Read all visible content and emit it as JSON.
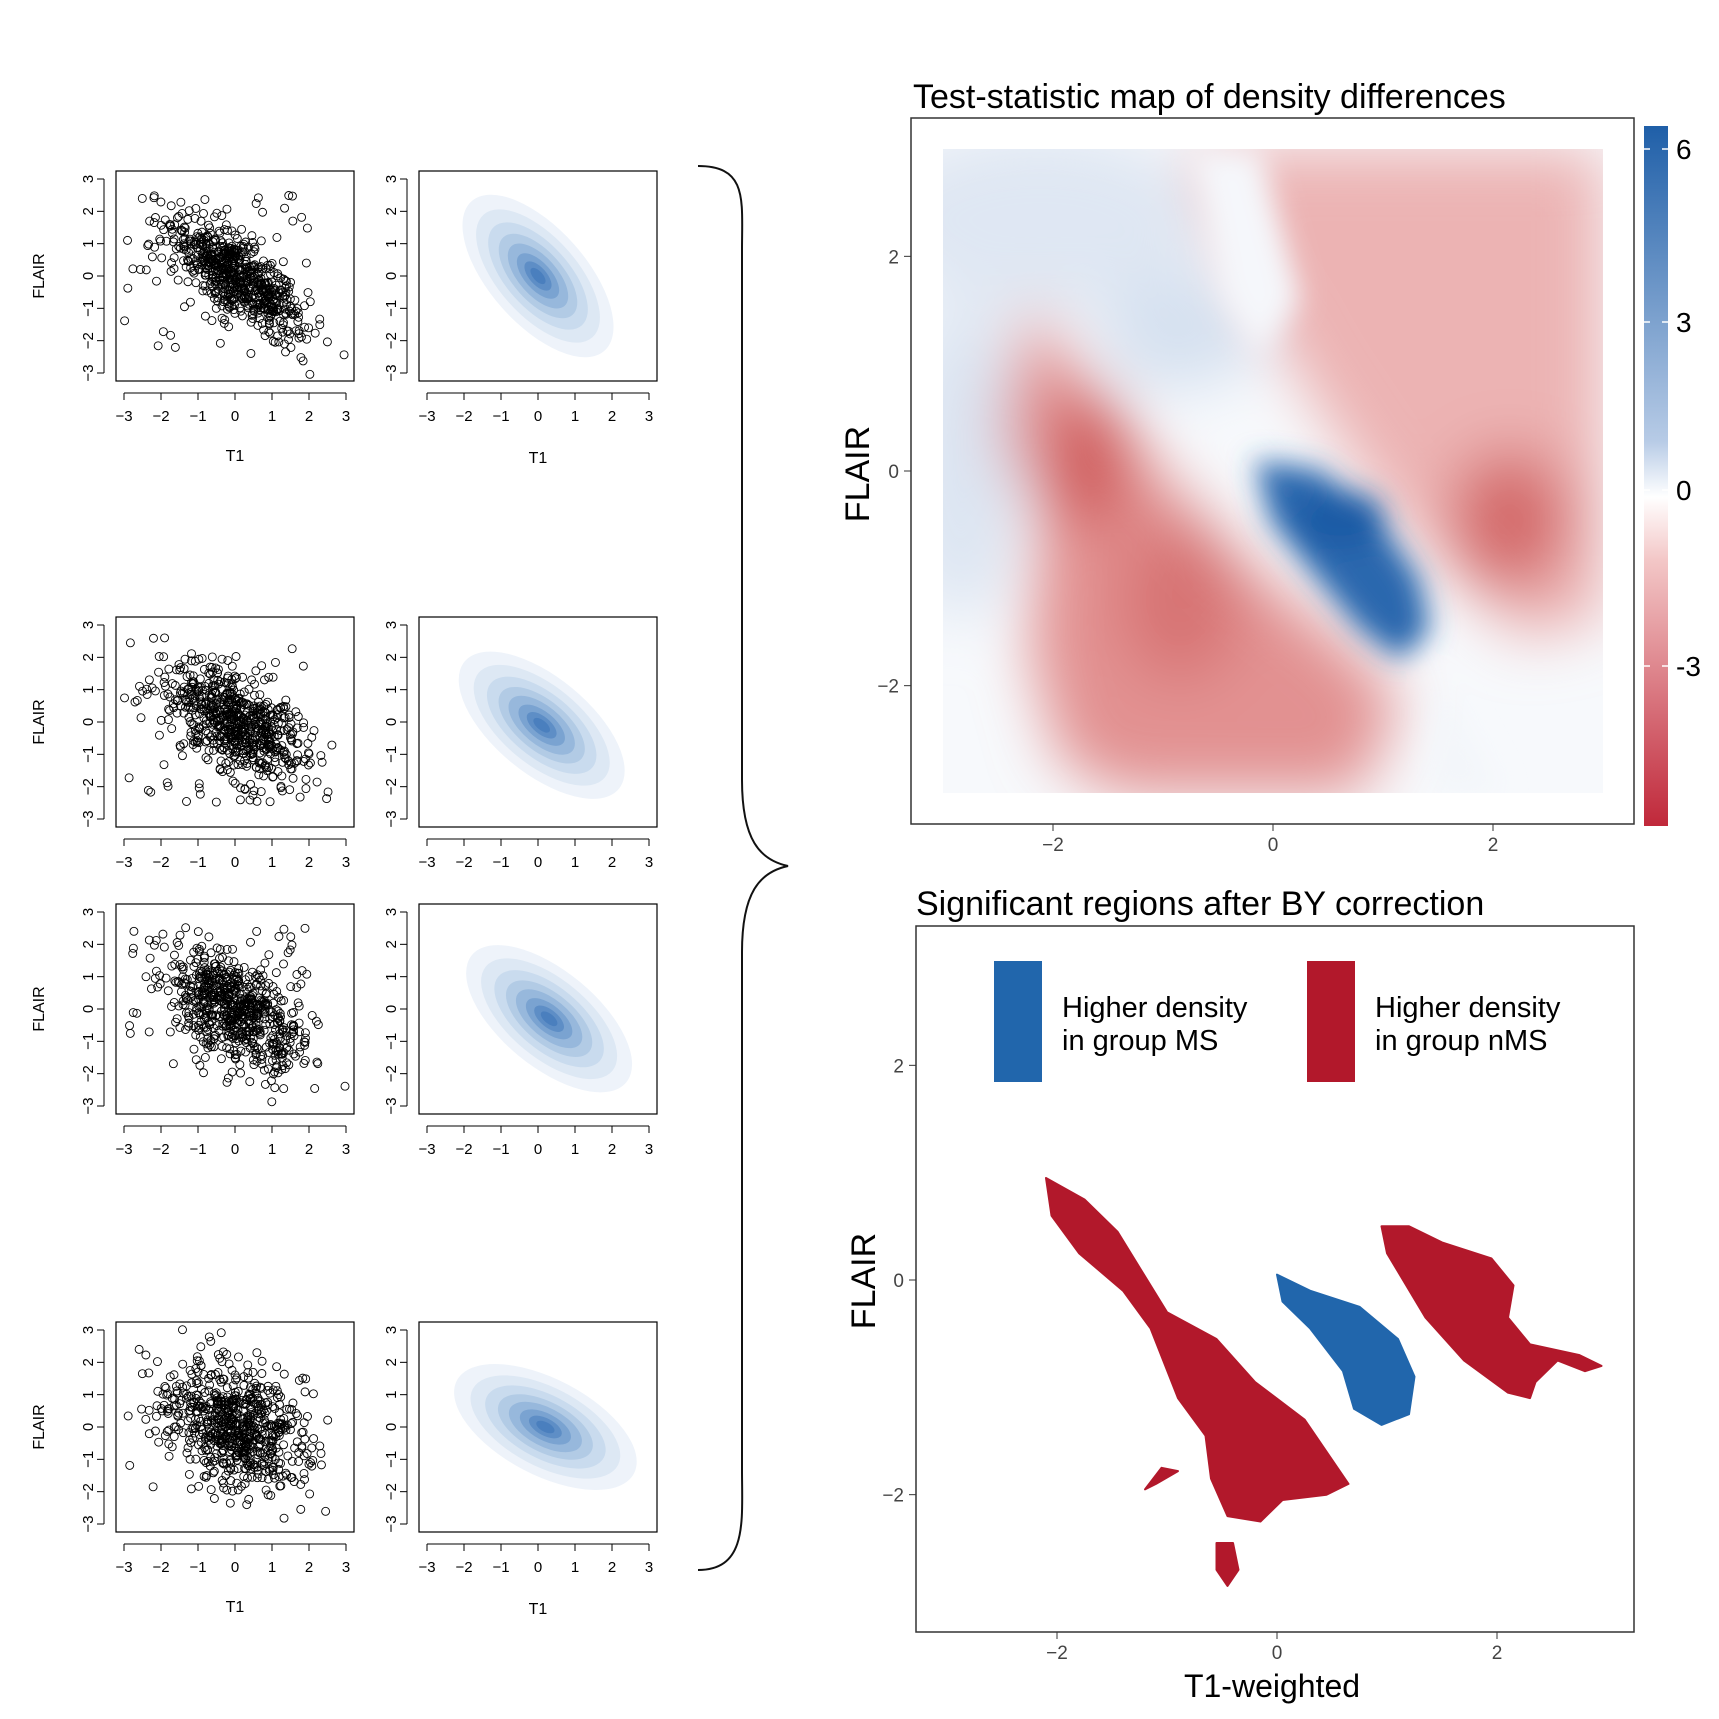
{
  "left_panels": {
    "scatter_xlabel": "T1",
    "scatter_ylabel": "FLAIR",
    "density_xlabel": "T1",
    "tick_values": [
      -3,
      -2,
      -1,
      0,
      1,
      2,
      3
    ],
    "tick_labels": [
      "−3",
      "−2",
      "−1",
      "0",
      "1",
      "2",
      "3"
    ],
    "rows": [
      {
        "show_xlabel": true,
        "corr": -0.75,
        "n": 1000,
        "density_center": [
          0.0,
          0.0
        ]
      },
      {
        "show_xlabel": false,
        "corr": -0.55,
        "n": 1000,
        "density_center": [
          0.1,
          -0.1
        ]
      },
      {
        "show_xlabel": false,
        "corr": -0.55,
        "n": 1000,
        "density_center": [
          0.3,
          -0.3
        ]
      },
      {
        "show_xlabel": true,
        "corr": -0.35,
        "n": 1000,
        "density_center": [
          0.2,
          0.0
        ]
      }
    ]
  },
  "right_panels": {
    "top_title": "Test-statistic map of density differences",
    "top_ylabel": "FLAIR",
    "bottom_title": "Significant regions after BY correction",
    "bottom_ylabel": "FLAIR",
    "bottom_xlabel": "T1-weighted",
    "axis_ticks": [
      -2,
      0,
      2
    ],
    "axis_tick_labels": [
      "−2",
      "0",
      "2"
    ],
    "colorbar_ticks": [
      "6",
      "3",
      "0",
      "-3"
    ],
    "legend": [
      {
        "label_line1": "Higher density",
        "label_line2": "in group MS",
        "color": "#2166ac"
      },
      {
        "label_line1": "Higher density",
        "label_line2": "in group nMS",
        "color": "#b2182b"
      }
    ]
  },
  "chart_data": [
    {
      "type": "scatter",
      "title": "",
      "xlabel": "T1",
      "ylabel": "FLAIR",
      "xlim": [
        -3,
        3
      ],
      "ylim": [
        -3,
        3
      ],
      "description_series": "4 subjects, ~1000 points each, negatively correlated"
    },
    {
      "type": "heatmap",
      "title": "Test-statistic map of density differences",
      "xlabel": "",
      "ylabel": "FLAIR",
      "xlim": [
        -3,
        3
      ],
      "ylim": [
        -3,
        3
      ],
      "color_range": [
        -5.5,
        6.5
      ],
      "colorbar_ticks": [
        6,
        3,
        0,
        -3
      ],
      "positive_color": "#2166ac",
      "negative_color": "#b2182b"
    },
    {
      "type": "heatmap",
      "title": "Significant regions after BY correction",
      "xlabel": "T1-weighted",
      "ylabel": "FLAIR",
      "xlim": [
        -3,
        3
      ],
      "ylim": [
        -3,
        3
      ],
      "series": [
        {
          "name": "Higher density in group MS",
          "color": "#2166ac",
          "regions": [
            [
              [
                0.0,
                0.05
              ],
              [
                0.3,
                -0.1
              ],
              [
                0.75,
                -0.25
              ],
              [
                1.1,
                -0.55
              ],
              [
                1.25,
                -0.9
              ],
              [
                1.2,
                -1.25
              ],
              [
                0.95,
                -1.35
              ],
              [
                0.7,
                -1.2
              ],
              [
                0.6,
                -0.85
              ],
              [
                0.3,
                -0.45
              ],
              [
                0.05,
                -0.2
              ]
            ]
          ]
        },
        {
          "name": "Higher density in group nMS",
          "color": "#b2182b",
          "regions": [
            [
              [
                -2.1,
                0.95
              ],
              [
                -1.75,
                0.75
              ],
              [
                -1.45,
                0.45
              ],
              [
                -1.0,
                -0.3
              ],
              [
                -0.55,
                -0.55
              ],
              [
                -0.2,
                -0.95
              ],
              [
                0.25,
                -1.3
              ],
              [
                0.65,
                -1.9
              ],
              [
                0.45,
                -2.0
              ],
              [
                0.05,
                -2.05
              ],
              [
                -0.15,
                -2.25
              ],
              [
                -0.45,
                -2.2
              ],
              [
                -0.6,
                -1.85
              ],
              [
                -0.65,
                -1.45
              ],
              [
                -0.9,
                -1.1
              ],
              [
                -1.15,
                -0.45
              ],
              [
                -1.4,
                -0.1
              ],
              [
                -1.8,
                0.25
              ],
              [
                -2.05,
                0.6
              ]
            ],
            [
              [
                0.95,
                0.5
              ],
              [
                1.2,
                0.5
              ],
              [
                1.5,
                0.35
              ],
              [
                1.95,
                0.2
              ],
              [
                2.15,
                -0.05
              ],
              [
                2.1,
                -0.35
              ],
              [
                2.3,
                -0.6
              ],
              [
                2.75,
                -0.7
              ],
              [
                2.95,
                -0.8
              ],
              [
                2.8,
                -0.85
              ],
              [
                2.55,
                -0.75
              ],
              [
                2.35,
                -0.95
              ],
              [
                2.3,
                -1.1
              ],
              [
                2.1,
                -1.05
              ],
              [
                1.7,
                -0.75
              ],
              [
                1.35,
                -0.35
              ],
              [
                1.0,
                0.25
              ]
            ],
            [
              [
                -1.2,
                -1.95
              ],
              [
                -1.05,
                -1.75
              ],
              [
                -0.9,
                -1.78
              ],
              [
                -1.1,
                -1.9
              ]
            ],
            [
              [
                -0.55,
                -2.45
              ],
              [
                -0.4,
                -2.45
              ],
              [
                -0.35,
                -2.7
              ],
              [
                -0.45,
                -2.85
              ],
              [
                -0.55,
                -2.7
              ]
            ]
          ]
        }
      ]
    }
  ]
}
